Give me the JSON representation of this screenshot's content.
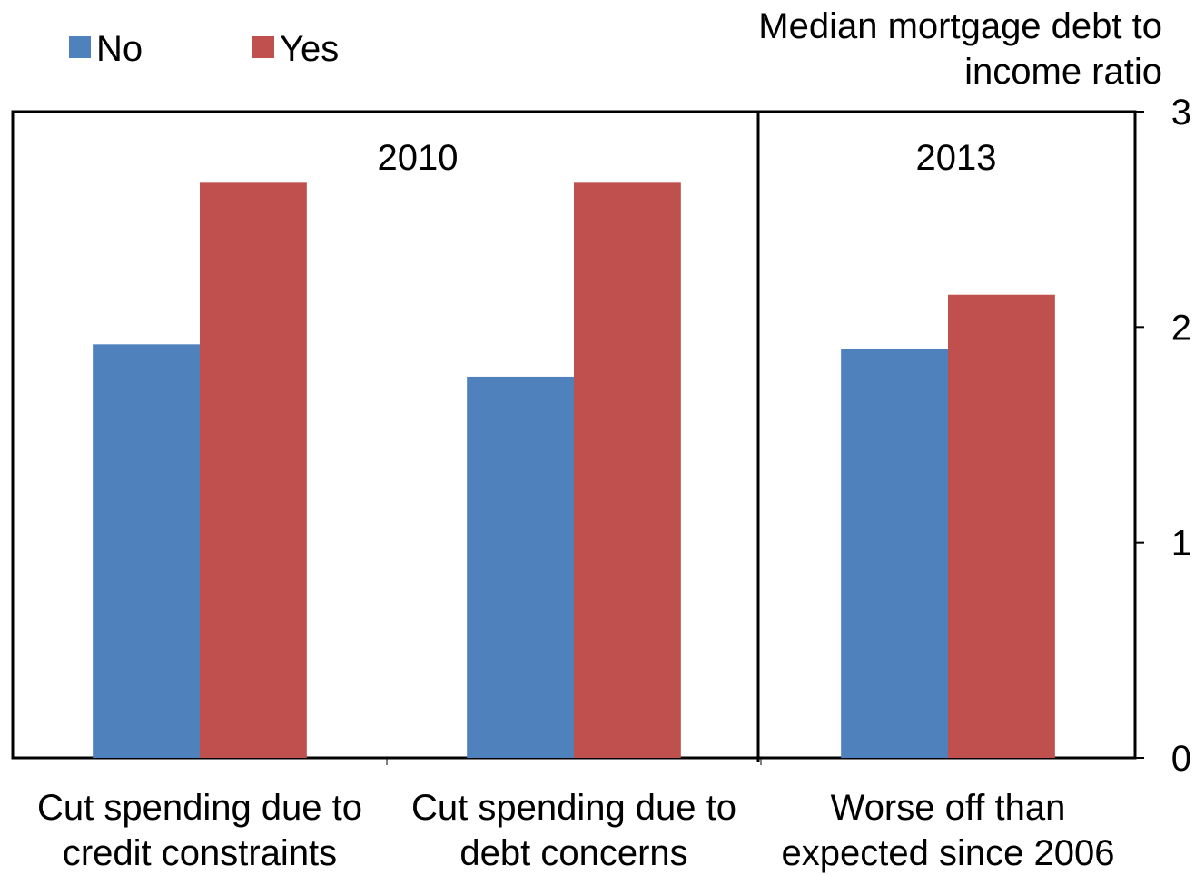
{
  "chart_data": {
    "type": "bar",
    "y_label": [
      "Median mortgage debt to",
      "income ratio"
    ],
    "categories": [
      [
        "Cut spending due to",
        "credit constraints"
      ],
      [
        "Cut spending due to",
        "debt concerns"
      ],
      [
        "Worse off than",
        "expected since 2006"
      ]
    ],
    "series": [
      {
        "name": "No",
        "color": "#4f81bd",
        "values": [
          1.92,
          1.77,
          1.9
        ]
      },
      {
        "name": "Yes",
        "color": "#c0504d",
        "values": [
          2.67,
          2.67,
          2.15
        ]
      }
    ],
    "annotations": [
      "2010",
      "2013"
    ],
    "ylim": [
      0,
      3
    ],
    "yticks": [
      0,
      1,
      2,
      3
    ],
    "y_axis_side": "right",
    "legend": "top-left"
  }
}
